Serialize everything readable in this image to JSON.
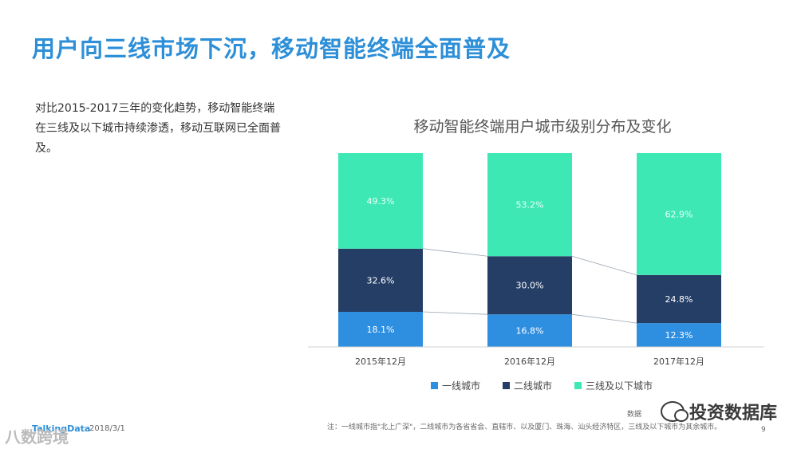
{
  "page": {
    "title": "用户向三线市场下沉，移动智能终端全面普及",
    "intro": "对比2015-2017三年的变化趋势，移动智能终端在三线及以下城市持续渗透，移动互联网已全面普及。"
  },
  "chart_data": {
    "type": "bar",
    "stacked": true,
    "title": "移动智能终端用户城市级别分布及变化",
    "categories": [
      "2015年12月",
      "2016年12月",
      "2017年12月"
    ],
    "series": [
      {
        "name": "一线城市",
        "values": [
          18.1,
          16.8,
          12.3
        ],
        "labels": [
          "18.1%",
          "16.8%",
          "12.3%"
        ],
        "color": "#2e8ee0"
      },
      {
        "name": "二线城市",
        "values": [
          32.6,
          30.0,
          24.8
        ],
        "labels": [
          "32.6%",
          "30.0%",
          "24.8%"
        ],
        "color": "#253e66"
      },
      {
        "name": "三线及以下城市",
        "values": [
          49.3,
          53.2,
          62.9
        ],
        "labels": [
          "49.3%",
          "53.2%",
          "62.9%"
        ],
        "color": "#3ee8b4"
      }
    ],
    "ylim": [
      0,
      100
    ],
    "grid": false,
    "legend_position": "bottom",
    "connector_lines": true
  },
  "footer": {
    "logo": "TalkingData",
    "date": "2018/3/1",
    "source_label": "数据",
    "note": "注：一线城市指\"北上广深\"，二线城市为各省省会、直辖市、以及厦门、珠海、汕头经济特区，三线及以下城市为其余城市。",
    "page_number": "9"
  },
  "watermarks": {
    "right": "投资数据库",
    "left": "八数跨境"
  }
}
